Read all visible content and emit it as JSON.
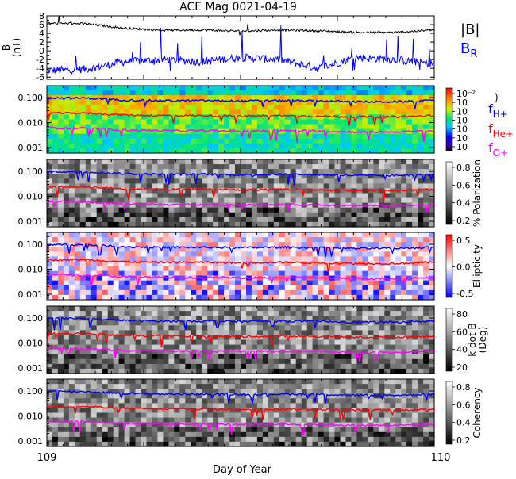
{
  "title": "ACE Mag 0021-04-19",
  "xlabel": "Day of Year",
  "x_ticks": [
    "109",
    "110"
  ],
  "colors": {
    "B_total": "#000000",
    "B_R": "#0000ff",
    "f_H": "#0000ff",
    "f_He": "#ff0000",
    "f_O": "#ff00ff"
  },
  "panel1": {
    "ylabel": "B",
    "yunit": "(nT)",
    "ytick_labels": [
      "8",
      "6",
      "4",
      "2",
      "0",
      "-2",
      "-4",
      "-6"
    ],
    "legend_B": "|B|",
    "legend_BR_main": "B",
    "legend_BR_sub": "R"
  },
  "spectral_ytick_labels": [
    "0.100",
    "0.010",
    "0.001"
  ],
  "gyro_legend": {
    "fH_main": "f",
    "fH_sub": "H+",
    "fHe_main": "f",
    "fHe_sub": "He+",
    "fO_main": "f",
    "fO_sub": "O+"
  },
  "panel2": {
    "colorbar_labels": [
      "10⁻²",
      "10",
      "10",
      "10",
      "10",
      "10",
      "10"
    ],
    "unit_fragment": ")"
  },
  "panel3": {
    "colorbar_labels": [
      "0.8",
      "0.6",
      "0.4",
      "0.2"
    ],
    "label": "% Polarization"
  },
  "panel4": {
    "colorbar_labels": [
      "0.5",
      "0.0",
      "-0.5"
    ],
    "label": "Ellipticity"
  },
  "panel5": {
    "colorbar_labels": [
      "80",
      "60",
      "40",
      "20"
    ],
    "label_line1": "k dot B",
    "label_line2": "(Deg)"
  },
  "panel6": {
    "colorbar_labels": [
      "0.8",
      "0.6",
      "0.4",
      "0.2"
    ],
    "label": "Coherency"
  },
  "chart_data": [
    {
      "type": "line",
      "title": "ACE Mag 0021-04-19",
      "xlabel": "Day of Year",
      "ylabel": "B (nT)",
      "xlim": [
        109,
        110
      ],
      "ylim": [
        -6.5,
        8
      ],
      "series": [
        {
          "name": "|B|",
          "x": [
            109.0,
            109.1,
            109.2,
            109.3,
            109.4,
            109.5,
            109.6,
            109.7,
            109.8,
            109.9,
            110.0
          ],
          "values": [
            6.3,
            6.2,
            5.2,
            4.7,
            4.8,
            4.5,
            4.8,
            4.6,
            4.2,
            4.2,
            4.8
          ]
        },
        {
          "name": "B_R",
          "x": [
            109.0,
            109.1,
            109.2,
            109.3,
            109.4,
            109.5,
            109.6,
            109.7,
            109.8,
            109.9,
            110.0
          ],
          "values": [
            -4.5,
            -4.2,
            -2.5,
            -2.0,
            -2.5,
            -1.5,
            -2.0,
            -4.0,
            -1.5,
            -2.0,
            -3.0
          ]
        }
      ]
    },
    {
      "type": "line",
      "xlabel": "Day of Year",
      "xlim": [
        109,
        110
      ],
      "ylim": [
        0.0006,
        0.3
      ],
      "yscale": "log",
      "series": [
        {
          "name": "f_H+",
          "x": [
            109.0,
            109.1,
            109.2,
            109.3,
            109.4,
            109.5,
            109.6,
            109.7,
            109.8,
            109.9,
            110.0
          ],
          "values": [
            0.097,
            0.095,
            0.08,
            0.075,
            0.076,
            0.073,
            0.076,
            0.074,
            0.068,
            0.068,
            0.076
          ]
        },
        {
          "name": "f_He+",
          "x": [
            109.0,
            109.1,
            109.2,
            109.3,
            109.4,
            109.5,
            109.6,
            109.7,
            109.8,
            109.9,
            110.0
          ],
          "values": [
            0.024,
            0.024,
            0.02,
            0.019,
            0.019,
            0.018,
            0.019,
            0.018,
            0.017,
            0.017,
            0.019
          ]
        },
        {
          "name": "f_O+",
          "x": [
            109.0,
            109.1,
            109.2,
            109.3,
            109.4,
            109.5,
            109.6,
            109.7,
            109.8,
            109.9,
            110.0
          ],
          "values": [
            0.0061,
            0.0059,
            0.005,
            0.0047,
            0.0047,
            0.0046,
            0.0047,
            0.0046,
            0.0042,
            0.0042,
            0.0047
          ]
        }
      ]
    }
  ]
}
